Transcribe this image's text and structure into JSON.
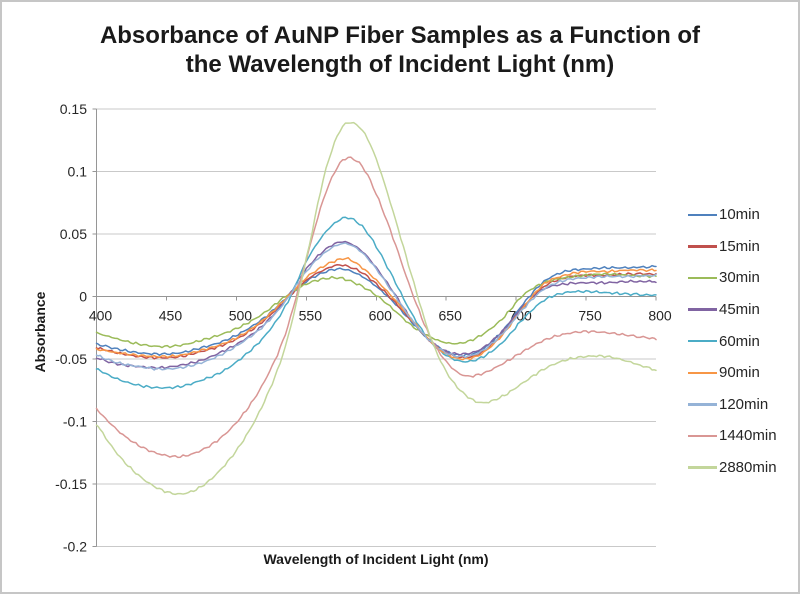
{
  "title": {
    "line1": "Absorbance of AuNP Fiber Samples as a Function of",
    "line2": "the Wavelength of Incident Light (nm)"
  },
  "chart_data": {
    "type": "line",
    "title": "Absorbance of AuNP Fiber Samples as a Function of the Wavelength of Incident Light (nm)",
    "xlabel": "Wavelength of Incident Light (nm)",
    "ylabel": "Absorbance",
    "xlim": [
      400,
      800
    ],
    "ylim": [
      -0.2,
      0.15
    ],
    "x_ticks": [
      400,
      450,
      500,
      550,
      600,
      650,
      700,
      750,
      800
    ],
    "y_ticks": [
      0.15,
      0.1,
      0.05,
      0,
      -0.05,
      -0.1,
      -0.15,
      -0.2
    ],
    "grid": "horizontal",
    "legend_position": "right",
    "gridline_color": "#c9c9c9",
    "axis_color": "#969696",
    "text_color": "#262626",
    "x_anchor_nm": [
      400,
      415,
      430,
      445,
      460,
      475,
      490,
      505,
      520,
      535,
      550,
      562,
      572,
      580,
      590,
      600,
      612,
      625,
      638,
      650,
      662,
      675,
      690,
      705,
      720,
      735,
      750,
      765,
      780,
      800
    ],
    "series": [
      {
        "name": "10min",
        "color": "#4F81BD",
        "values": [
          -0.038,
          -0.042,
          -0.045,
          -0.046,
          -0.045,
          -0.041,
          -0.036,
          -0.028,
          -0.017,
          -0.002,
          0.012,
          0.019,
          0.022,
          0.021,
          0.016,
          0.008,
          -0.004,
          -0.02,
          -0.035,
          -0.044,
          -0.047,
          -0.043,
          -0.028,
          -0.006,
          0.012,
          0.02,
          0.022,
          0.023,
          0.023,
          0.024
        ]
      },
      {
        "name": "15min",
        "color": "#C0504D",
        "values": [
          -0.041,
          -0.045,
          -0.048,
          -0.049,
          -0.048,
          -0.044,
          -0.039,
          -0.031,
          -0.019,
          -0.003,
          0.013,
          0.021,
          0.025,
          0.024,
          0.019,
          0.01,
          -0.003,
          -0.019,
          -0.035,
          -0.045,
          -0.049,
          -0.045,
          -0.03,
          -0.009,
          0.008,
          0.015,
          0.017,
          0.017,
          0.018,
          0.018
        ]
      },
      {
        "name": "30min",
        "color": "#9BBB59",
        "values": [
          -0.029,
          -0.034,
          -0.038,
          -0.04,
          -0.039,
          -0.035,
          -0.03,
          -0.023,
          -0.013,
          0.0,
          0.01,
          0.014,
          0.015,
          0.013,
          0.008,
          0.001,
          -0.01,
          -0.023,
          -0.032,
          -0.037,
          -0.037,
          -0.031,
          -0.018,
          0.001,
          0.011,
          0.015,
          0.017,
          0.018,
          0.017,
          0.016
        ]
      },
      {
        "name": "45min",
        "color": "#8064A2",
        "values": [
          -0.049,
          -0.054,
          -0.056,
          -0.057,
          -0.055,
          -0.051,
          -0.044,
          -0.035,
          -0.022,
          -0.003,
          0.022,
          0.036,
          0.043,
          0.043,
          0.036,
          0.023,
          0.004,
          -0.018,
          -0.035,
          -0.044,
          -0.046,
          -0.042,
          -0.028,
          -0.008,
          0.006,
          0.01,
          0.011,
          0.011,
          0.012,
          0.012
        ]
      },
      {
        "name": "60min",
        "color": "#4BACC6",
        "values": [
          -0.058,
          -0.066,
          -0.071,
          -0.073,
          -0.072,
          -0.067,
          -0.06,
          -0.048,
          -0.032,
          -0.008,
          0.028,
          0.049,
          0.06,
          0.063,
          0.056,
          0.04,
          0.015,
          -0.013,
          -0.035,
          -0.047,
          -0.052,
          -0.049,
          -0.037,
          -0.018,
          -0.003,
          0.003,
          0.004,
          0.003,
          0.002,
          0.001
        ]
      },
      {
        "name": "90min",
        "color": "#F79646",
        "values": [
          -0.042,
          -0.045,
          -0.047,
          -0.048,
          -0.047,
          -0.043,
          -0.038,
          -0.03,
          -0.018,
          -0.002,
          0.015,
          0.024,
          0.029,
          0.03,
          0.023,
          0.013,
          -0.001,
          -0.018,
          -0.035,
          -0.046,
          -0.05,
          -0.046,
          -0.031,
          -0.009,
          0.01,
          0.017,
          0.02,
          0.02,
          0.021,
          0.021
        ]
      },
      {
        "name": "120min",
        "color": "#95B3D7",
        "values": [
          -0.047,
          -0.053,
          -0.056,
          -0.058,
          -0.057,
          -0.053,
          -0.046,
          -0.036,
          -0.023,
          -0.004,
          0.02,
          0.034,
          0.041,
          0.042,
          0.035,
          0.022,
          0.003,
          -0.018,
          -0.035,
          -0.045,
          -0.048,
          -0.044,
          -0.03,
          -0.01,
          0.006,
          0.013,
          0.015,
          0.016,
          0.016,
          0.017
        ]
      },
      {
        "name": "1440min",
        "color": "#D99694",
        "values": [
          -0.09,
          -0.107,
          -0.119,
          -0.126,
          -0.128,
          -0.123,
          -0.112,
          -0.094,
          -0.068,
          -0.03,
          0.03,
          0.077,
          0.103,
          0.111,
          0.104,
          0.082,
          0.047,
          0.005,
          -0.031,
          -0.052,
          -0.063,
          -0.062,
          -0.054,
          -0.044,
          -0.035,
          -0.03,
          -0.028,
          -0.029,
          -0.031,
          -0.034
        ]
      },
      {
        "name": "2880min",
        "color": "#C3D69B",
        "values": [
          -0.102,
          -0.126,
          -0.143,
          -0.154,
          -0.158,
          -0.152,
          -0.137,
          -0.115,
          -0.084,
          -0.04,
          0.03,
          0.093,
          0.128,
          0.139,
          0.133,
          0.11,
          0.068,
          0.018,
          -0.03,
          -0.06,
          -0.077,
          -0.085,
          -0.08,
          -0.069,
          -0.058,
          -0.051,
          -0.048,
          -0.048,
          -0.052,
          -0.059
        ]
      }
    ]
  }
}
